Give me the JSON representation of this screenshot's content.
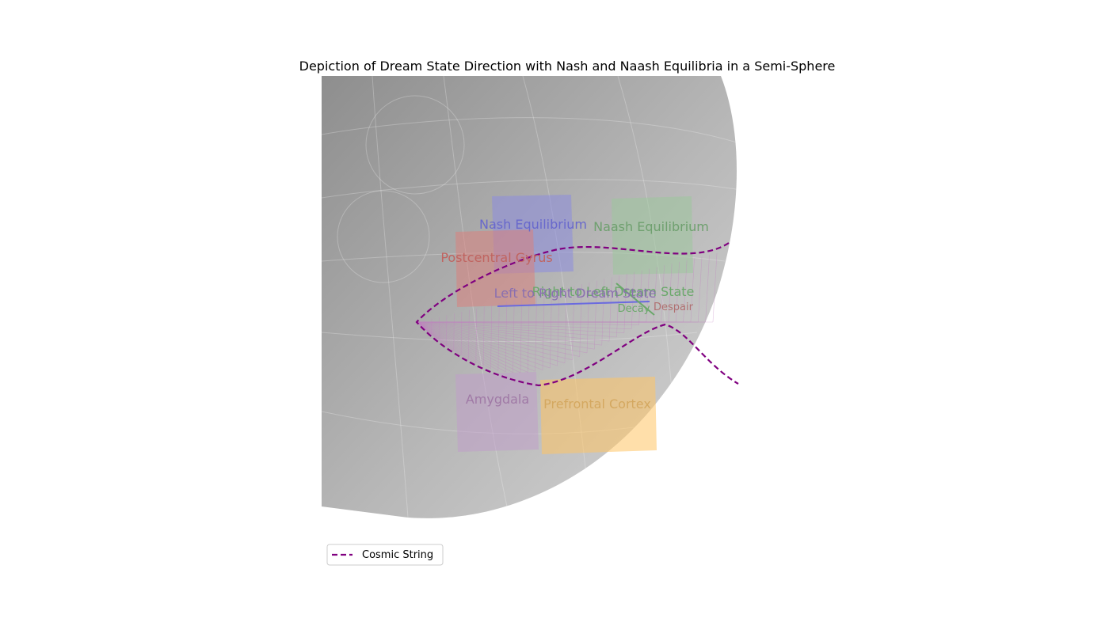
{
  "chart_data": {
    "type": "3d-surface",
    "title": "Depiction of Dream State Direction with Nash and Naash Equilibria in a Semi-Sphere",
    "colors": {
      "sphere": "#a9a9a9",
      "cosmic_string": "#800080",
      "mesh": "#c080c0",
      "left_to_right": "#6a6adf",
      "right_to_left": "#6aa86a",
      "decay": "#6aa86a",
      "despair": "#b07070"
    },
    "planes": [
      {
        "key": "nash",
        "label": "Nash Equilibrium",
        "color": "#8c8cdf",
        "text_color": "#6868cc"
      },
      {
        "key": "naash",
        "label": "Naash Equilibrium",
        "color": "#9dc79d",
        "text_color": "#6fa06f"
      },
      {
        "key": "postcentral",
        "label": "Postcentral Gyrus",
        "color": "#d9827e",
        "text_color": "#c06460"
      },
      {
        "key": "amygdala",
        "label": "Amygdala",
        "color": "#c09fc9",
        "text_color": "#a07aa6"
      },
      {
        "key": "prefrontal",
        "label": "Prefrontal Cortex",
        "color": "#ffc565",
        "text_color": "#d4a860"
      }
    ],
    "annotations": {
      "left_to_right": "Left to Right Dream State",
      "right_to_left": "Right to Left Dream State",
      "decay": "Decay",
      "despair": "Despair"
    },
    "legend": {
      "placement": "lower-left",
      "entries": [
        {
          "label": "Cosmic String",
          "style": "dashed",
          "color": "#800080"
        }
      ]
    }
  }
}
